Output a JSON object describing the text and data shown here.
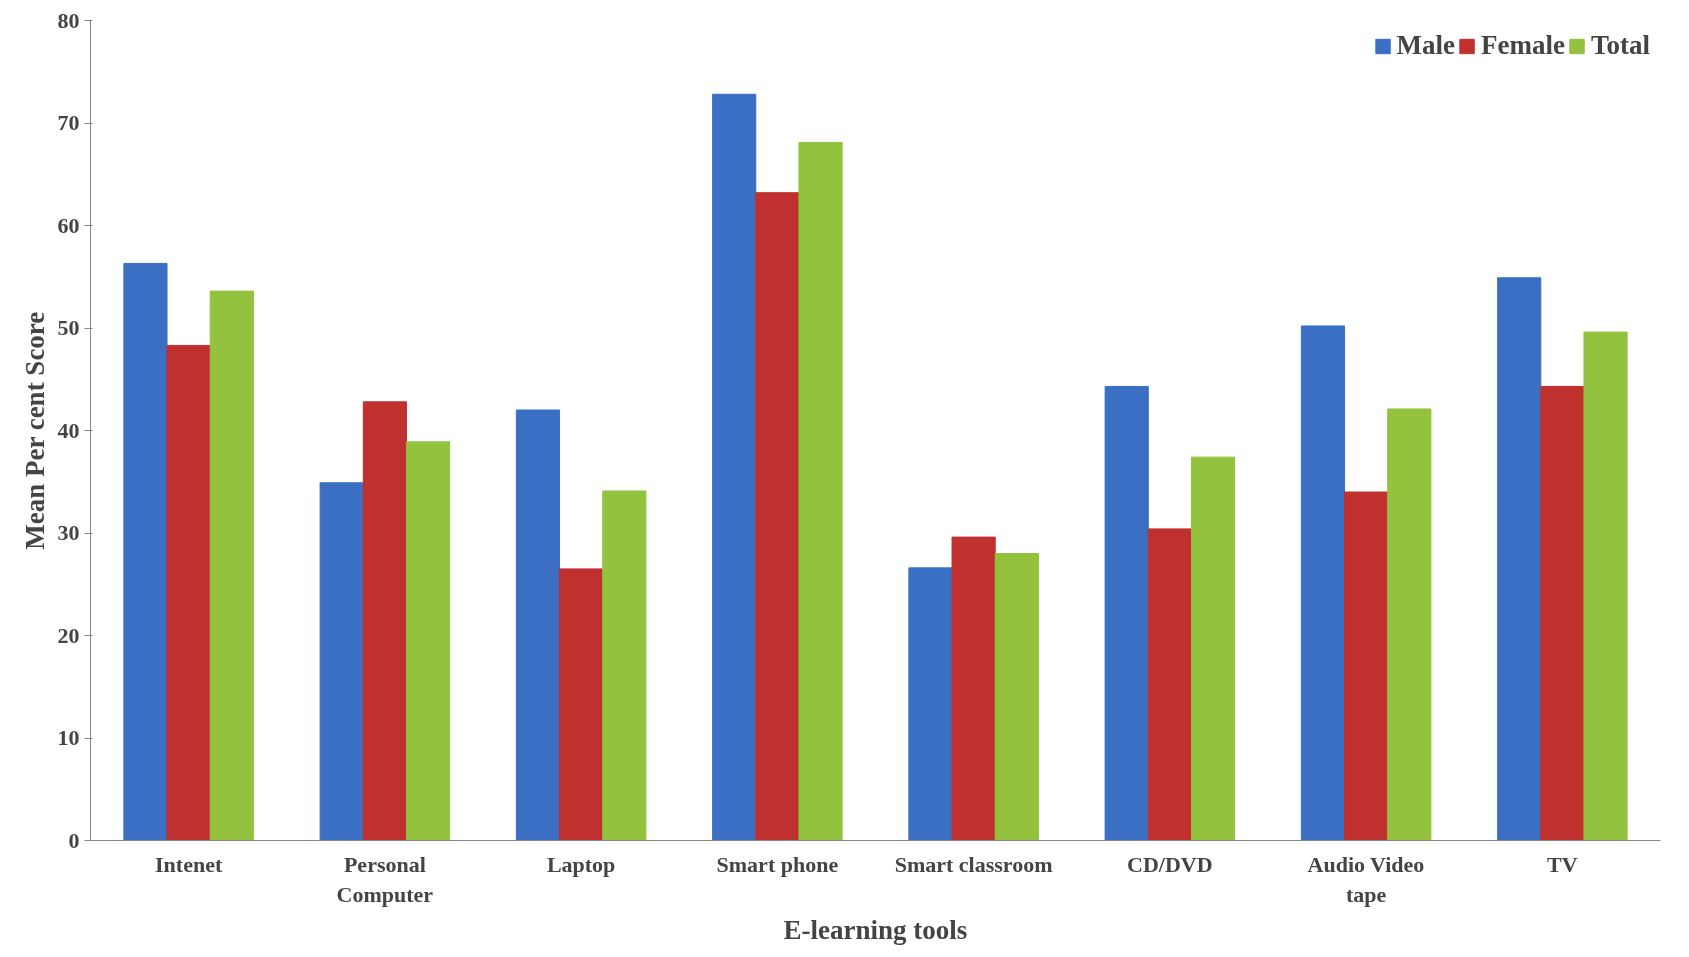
{
  "chart_data": {
    "type": "bar",
    "xlabel": "E-learning tools",
    "ylabel": "Mean Per cent Score",
    "categories": [
      "Intenet",
      "Personal\nComputer",
      "Laptop",
      "Smart phone",
      "Smart classroom",
      "CD/DVD",
      "Audio Video\ntape",
      "TV"
    ],
    "series": [
      {
        "name": "Male",
        "color": "#3a6fc4",
        "values": [
          56.3,
          34.9,
          42.0,
          72.8,
          26.6,
          44.3,
          50.2,
          54.9
        ]
      },
      {
        "name": "Female",
        "color": "#c0302e",
        "values": [
          48.3,
          42.8,
          26.5,
          63.2,
          29.6,
          30.4,
          34.0,
          44.3
        ]
      },
      {
        "name": "Total",
        "color": "#92c23e",
        "values": [
          53.6,
          38.9,
          34.1,
          68.1,
          28.0,
          37.4,
          42.1,
          49.6
        ]
      }
    ],
    "ylim": [
      0,
      80
    ],
    "yticks": [
      0,
      10,
      20,
      30,
      40,
      50,
      60,
      70,
      80
    ],
    "grid": false,
    "legend": "top right"
  }
}
